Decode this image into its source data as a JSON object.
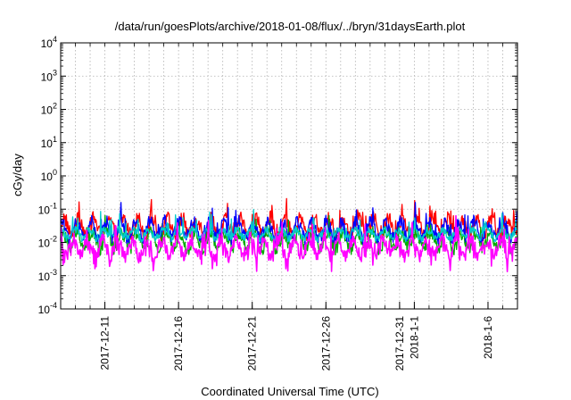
{
  "chart_data": {
    "type": "line",
    "title": "/data/run/goesPlots/archive/2018-01-08/flux/../bryn/31daysEarth.plot",
    "xlabel": "Coordinated Universal Time (UTC)",
    "ylabel": "cGy/day",
    "y_scale": "log",
    "ylim": [
      0.0001,
      10000
    ],
    "xlim": [
      "2017-12-08",
      "2018-01-08"
    ],
    "grid": true,
    "y_ticks": [
      {
        "value": 0.0001,
        "base": "10",
        "exp": "-4"
      },
      {
        "value": 0.001,
        "base": "10",
        "exp": "-3"
      },
      {
        "value": 0.01,
        "base": "10",
        "exp": "-2"
      },
      {
        "value": 0.1,
        "base": "10",
        "exp": "-1"
      },
      {
        "value": 1,
        "base": "10",
        "exp": "0"
      },
      {
        "value": 10,
        "base": "10",
        "exp": "1"
      },
      {
        "value": 100,
        "base": "10",
        "exp": "2"
      },
      {
        "value": 1000,
        "base": "10",
        "exp": "3"
      },
      {
        "value": 10000,
        "base": "10",
        "exp": "4"
      }
    ],
    "x_ticks": [
      {
        "date": "2017-12-11",
        "label": "2017-12-11"
      },
      {
        "date": "2017-12-16",
        "label": "2017-12-16"
      },
      {
        "date": "2017-12-21",
        "label": "2017-12-21"
      },
      {
        "date": "2017-12-26",
        "label": "2017-12-26"
      },
      {
        "date": "2017-12-31",
        "label": "2017-12-31"
      },
      {
        "date": "2018-01-01",
        "label": "2018-1-1"
      },
      {
        "date": "2018-01-06",
        "label": "2018-1-6"
      }
    ],
    "series": [
      {
        "color": "#ff0000",
        "level": 0.03,
        "amp": 0.22
      },
      {
        "color": "#00aa00",
        "level": 0.011,
        "amp": 0.2
      },
      {
        "color": "#0000ff",
        "level": 0.024,
        "amp": 0.2
      },
      {
        "color": "#00cccc",
        "level": 0.018,
        "amp": 0.12
      },
      {
        "color": "#ff00ff",
        "level": 0.007,
        "amp": 0.2
      }
    ]
  }
}
